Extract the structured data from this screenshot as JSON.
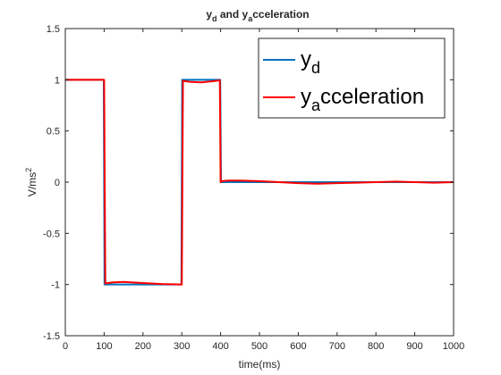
{
  "chart_data": {
    "type": "line",
    "title": {
      "main_1": "y",
      "sub_1": "d",
      "main_2": " and y",
      "sub_2": "a",
      "main_3": "cceleration"
    },
    "xlabel": "time(ms)",
    "ylabel": {
      "base": "V/ms",
      "sup": "2"
    },
    "xlim": [
      0,
      1000
    ],
    "ylim": [
      -1.5,
      1.5
    ],
    "xticks": [
      0,
      100,
      200,
      300,
      400,
      500,
      600,
      700,
      800,
      900,
      1000
    ],
    "yticks": [
      -1.5,
      -1,
      -0.5,
      0,
      0.5,
      1,
      1.5
    ],
    "grid": false,
    "legend_position": "top-right",
    "series": [
      {
        "name": {
          "base": "y",
          "sub": "d"
        },
        "color": "#0072BD",
        "x": [
          0,
          99,
          101,
          299,
          301,
          399,
          401,
          1000
        ],
        "y": [
          1,
          1,
          -1,
          -1,
          1,
          1,
          0,
          0
        ]
      },
      {
        "name": {
          "base": "y",
          "sub": "a",
          "rest": "cceleration"
        },
        "color": "#FF0000",
        "x": [
          0,
          100,
          103,
          120,
          150,
          200,
          250,
          300,
          303,
          320,
          350,
          380,
          398,
          400,
          403,
          420,
          450,
          500,
          550,
          600,
          650,
          700,
          750,
          800,
          850,
          900,
          950,
          1000
        ],
        "y": [
          1,
          1,
          -0.99,
          -0.98,
          -0.975,
          -0.985,
          -0.995,
          -1,
          0.99,
          0.98,
          0.975,
          0.985,
          0.995,
          0,
          0.01,
          0.015,
          0.015,
          0.01,
          0.0,
          -0.01,
          -0.015,
          -0.01,
          -0.005,
          0.0,
          0.005,
          0.0,
          -0.005,
          0.0
        ]
      }
    ]
  }
}
